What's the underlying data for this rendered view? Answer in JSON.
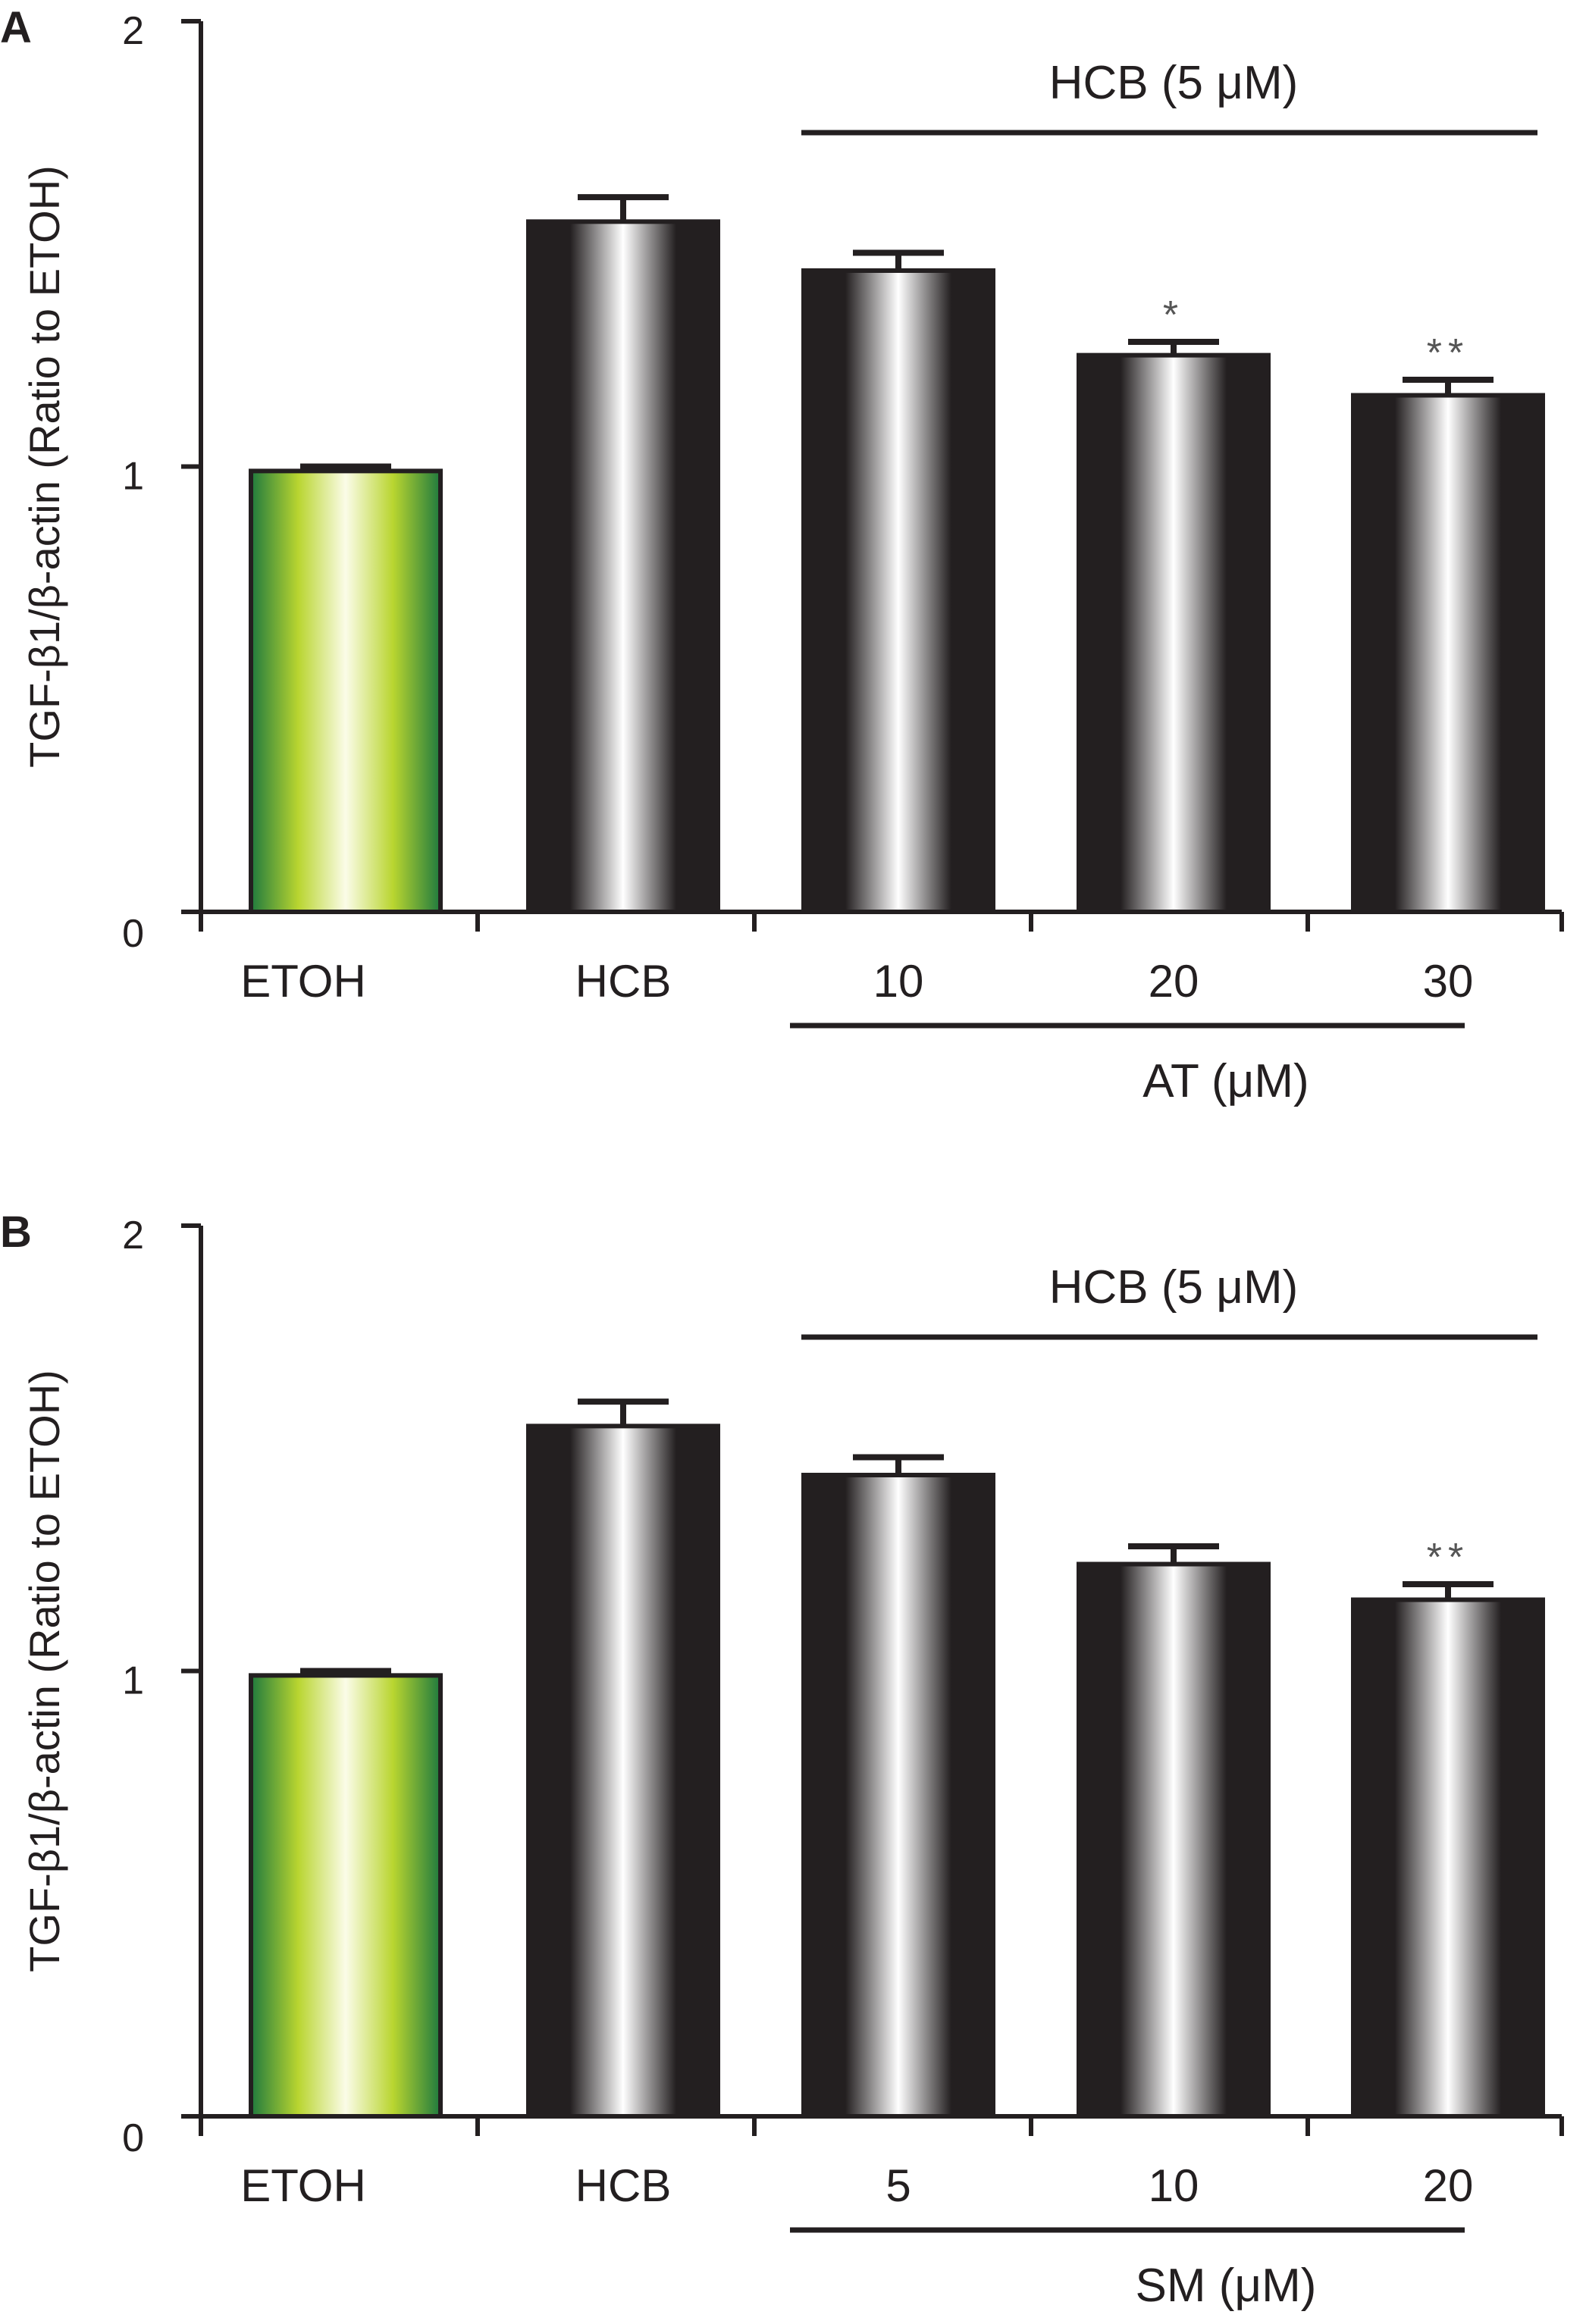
{
  "colors": {
    "bar_dark": "#231f20",
    "bar_light": "#ffffff",
    "control_dark": "#1f7a3e",
    "control_light": "#b9d530",
    "control_center": "#fbfce8",
    "axis": "#231f20"
  },
  "chart_data": [
    {
      "type": "bar",
      "panel_label": "A",
      "ylabel": "TGF-β1/β-actin (Ratio to ETOH)",
      "ylim": [
        0,
        2
      ],
      "yticks": [
        0,
        1,
        2
      ],
      "categories": [
        "ETOH",
        "HCB",
        "10",
        "20",
        "30"
      ],
      "values": [
        0.99,
        1.55,
        1.44,
        1.25,
        1.16
      ],
      "errors": [
        0.01,
        0.055,
        0.04,
        0.03,
        0.035
      ],
      "significance": [
        "",
        "",
        "",
        "*",
        "**"
      ],
      "top_bracket_label": "HCB (5 μM)",
      "bottom_bracket_label": "AT (μM)",
      "grid": false
    },
    {
      "type": "bar",
      "panel_label": "B",
      "ylabel": "TGF-β1/β-actin (Ratio to ETOH)",
      "ylim": [
        0,
        2
      ],
      "yticks": [
        0,
        1,
        2
      ],
      "categories": [
        "ETOH",
        "HCB",
        "5",
        "10",
        "20"
      ],
      "values": [
        0.99,
        1.55,
        1.44,
        1.24,
        1.16
      ],
      "errors": [
        0.01,
        0.055,
        0.04,
        0.04,
        0.035
      ],
      "significance": [
        "",
        "",
        "",
        "",
        "**"
      ],
      "top_bracket_label": "HCB (5 μM)",
      "bottom_bracket_label": "SM (μM)",
      "grid": false
    }
  ]
}
